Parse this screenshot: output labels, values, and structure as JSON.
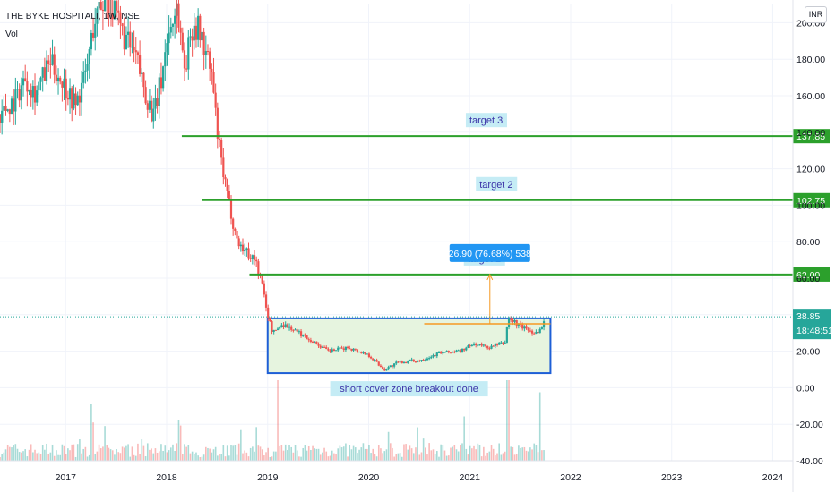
{
  "header": {
    "symbol_title": "THE BYKE HOSPITALI, 1W, NSE",
    "volume_label": "Vol",
    "currency_button": "INR"
  },
  "colors": {
    "up": "#26a69a",
    "down": "#ef5350",
    "target_line": "#2ca02c",
    "zone_border": "#1e5fd6",
    "zone_fill": "#e6f4df",
    "measure": "#f59a23",
    "measure_tag": "#2196f3",
    "price_tag": "#26a69a",
    "label_bg": "#c5ecf5"
  },
  "chart_data": {
    "type": "candlestick",
    "x_axis": {
      "ticks": [
        "2017",
        "2018",
        "2019",
        "2020",
        "2021",
        "2022",
        "2023",
        "2024"
      ],
      "range": [
        2016.35,
        2024.2
      ]
    },
    "y_axis": {
      "ticks": [
        "-40.00",
        "-20.00",
        "0.00",
        "20.00",
        "40.00",
        "60.00",
        "80.00",
        "100.00",
        "120.00",
        "140.00",
        "160.00",
        "180.00",
        "200.00"
      ],
      "range": [
        -40,
        210
      ]
    },
    "price_path": [
      [
        2016.35,
        150
      ],
      [
        2016.5,
        158
      ],
      [
        2016.6,
        170
      ],
      [
        2016.7,
        162
      ],
      [
        2016.85,
        178
      ],
      [
        2017.0,
        165
      ],
      [
        2017.1,
        155
      ],
      [
        2017.2,
        172
      ],
      [
        2017.28,
        200
      ],
      [
        2017.4,
        215
      ],
      [
        2017.5,
        202
      ],
      [
        2017.6,
        190
      ],
      [
        2017.7,
        180
      ],
      [
        2017.8,
        160
      ],
      [
        2017.87,
        148
      ],
      [
        2017.95,
        170
      ],
      [
        2018.0,
        190
      ],
      [
        2018.1,
        210
      ],
      [
        2018.18,
        175
      ],
      [
        2018.26,
        200
      ],
      [
        2018.33,
        195
      ],
      [
        2018.45,
        170
      ],
      [
        2018.5,
        140
      ],
      [
        2018.55,
        120
      ],
      [
        2018.6,
        105
      ],
      [
        2018.7,
        80
      ],
      [
        2018.78,
        75
      ],
      [
        2018.88,
        70
      ],
      [
        2018.95,
        55
      ],
      [
        2019.0,
        40
      ],
      [
        2019.05,
        30
      ],
      [
        2019.15,
        35
      ],
      [
        2019.25,
        32
      ],
      [
        2019.4,
        27
      ],
      [
        2019.6,
        20
      ],
      [
        2019.8,
        22
      ],
      [
        2020.0,
        18
      ],
      [
        2020.15,
        10
      ],
      [
        2020.3,
        14
      ],
      [
        2020.5,
        15
      ],
      [
        2020.7,
        19
      ],
      [
        2020.9,
        20
      ],
      [
        2021.05,
        24
      ],
      [
        2021.2,
        22
      ],
      [
        2021.35,
        25
      ],
      [
        2021.38,
        38
      ],
      [
        2021.5,
        34
      ],
      [
        2021.65,
        30
      ],
      [
        2021.72,
        33
      ],
      [
        2021.75,
        38.85
      ]
    ],
    "price_extremes": [
      [
        2017.45,
        218
      ],
      [
        2018.1,
        214
      ]
    ],
    "volume_spikes": [
      [
        2019.1,
        1.0
      ],
      [
        2021.38,
        1.0
      ],
      [
        2021.7,
        0.85
      ],
      [
        2020.95,
        0.55
      ],
      [
        2017.25,
        0.7
      ],
      [
        2018.12,
        0.5
      ]
    ],
    "last_price": "38.85",
    "countdown": "18:48:51",
    "targets": [
      {
        "name": "target 3",
        "value": 137.85,
        "label": "137.85",
        "x_start": 2018.15
      },
      {
        "name": "target 2",
        "value": 102.75,
        "label": "102.75",
        "x_start": 2018.35
      },
      {
        "name": "target 1",
        "value": 62.0,
        "label": "62.00",
        "x_start": 2018.82
      }
    ],
    "zone": {
      "x0": 2019.0,
      "x1": 2021.8,
      "y0": 8,
      "y1": 38,
      "label": "short cover zone breakout done"
    },
    "breakout_line": {
      "x0": 2020.55,
      "x1": 2021.8,
      "y": 35
    },
    "measure": {
      "x": 2021.2,
      "y0": 35,
      "y1": 62,
      "label": "26.90 (76.68%) 538"
    }
  }
}
